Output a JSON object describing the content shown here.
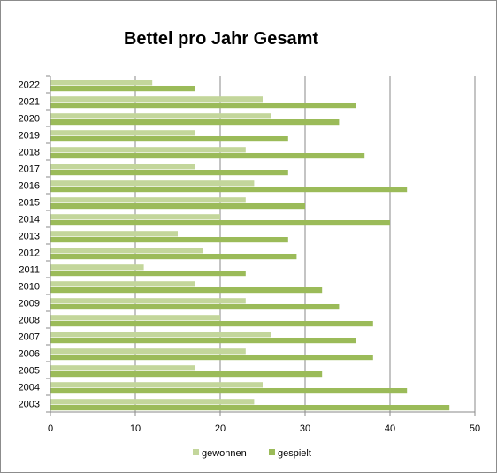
{
  "chart_data": {
    "type": "bar",
    "orientation": "horizontal",
    "title": "Bettel pro Jahr Gesamt",
    "categories": [
      "2003",
      "2004",
      "2005",
      "2006",
      "2007",
      "2008",
      "2009",
      "2010",
      "2011",
      "2012",
      "2013",
      "2014",
      "2015",
      "2016",
      "2017",
      "2018",
      "2019",
      "2020",
      "2021",
      "2022"
    ],
    "series": [
      {
        "name": "gewonnen",
        "color": "#c3d69b",
        "values": [
          24,
          25,
          17,
          23,
          26,
          20,
          23,
          17,
          11,
          18,
          15,
          20,
          23,
          24,
          17,
          23,
          17,
          26,
          25,
          12
        ]
      },
      {
        "name": "gespielt",
        "color": "#9bbb59",
        "values": [
          47,
          42,
          32,
          38,
          36,
          38,
          34,
          32,
          23,
          29,
          28,
          40,
          30,
          42,
          28,
          37,
          28,
          34,
          36,
          17
        ]
      }
    ],
    "xlim": [
      0,
      50
    ],
    "xticks": [
      0,
      10,
      20,
      30,
      40,
      50
    ],
    "grid": true,
    "legend": "bottom"
  }
}
